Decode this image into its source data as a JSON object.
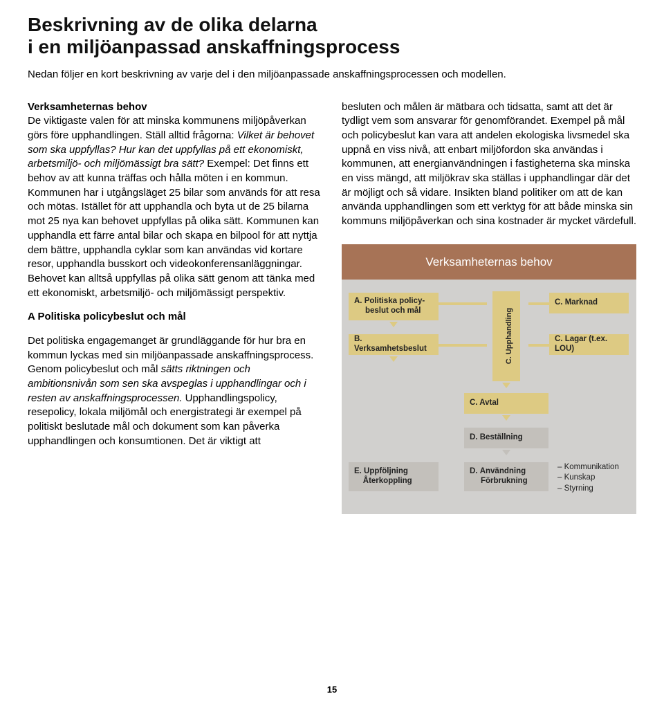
{
  "title_line1": "Beskrivning av de olika delarna",
  "title_line2": "i en miljöanpassad anskaffningsprocess",
  "intro": "Nedan följer en kort beskrivning av varje del i den miljöanpassade anskaffningsprocessen och modellen.",
  "col1_p1_lead": "Verksamheternas behov",
  "col1_p1_body": "De viktigaste valen för att minska kommunens miljöpåverkan görs före upphandlingen. Ställ alltid frågorna: ",
  "col1_p1_ital1": "Vilket är behovet som ska uppfyllas? Hur kan det uppfyllas på ett ekonomiskt, arbetsmiljö- och miljömässigt bra sätt?",
  "col1_p1_after": " Exempel: Det finns ett behov av att kunna träffas och hålla möten i en kommun. Kommunen har i utgångsläget 25 bilar som används för att resa och mötas. Istället för att upphandla och byta ut de 25 bilarna mot 25 nya kan behovet uppfyllas på olika sätt. Kommunen kan upphandla ett färre antal bilar och skapa en bilpool för att nyttja dem bättre, upphandla cyklar som kan användas vid kortare resor, upphandla busskort och videokonferensanläggningar. Behovet kan alltså uppfyllas på olika sätt genom att tänka med ett ekonomiskt, arbetsmiljö- och miljömässigt perspektiv.",
  "col1_h2": "A Politiska policybeslut och mål",
  "col1_p2_start": "Det politiska engagemanget är grundläggande för hur bra en kommun lyckas med sin miljöanpassade anskaffningsprocess. Genom policybeslut och mål ",
  "col1_p2_ital": "sätts riktningen och ambitionsnivån som sen ska avspeglas i upphandlingar och i resten av anskaffningsprocessen.",
  "col1_p2_end": " Upphandlingspolicy, resepolicy, lokala miljömål och energistrategi är exempel på politiskt beslutade mål och dokument som kan påverka upphandlingen och konsumtionen. Det är viktigt att",
  "col2_p1": "besluten och målen är mätbara och tidsatta, samt att det är tydligt vem som ansvarar för genomförandet. Exempel på mål och policybeslut kan vara att andelen ekologiska livsmedel ska uppnå en viss nivå, att enbart miljöfordon ska användas i kommunen, att energianvändningen i fastigheterna ska minska en viss mängd, att miljökrav ska ställas i upphandlingar där det är möjligt och så vidare. Insikten bland politiker om att de kan använda upphandlingen som ett verktyg för att både minska sin kommuns miljöpåverkan och sina kostnader är mycket värdefull.",
  "diagram": {
    "header": "Verksamheternas behov",
    "boxA": "A. Politiska policy-\n     beslut och mål",
    "boxB": "B. Verksamhetsbeslut",
    "vlabel": "C. Upphandling",
    "boxC1": "C. Marknad",
    "boxC2": "C. Lagar (t.ex. LOU)",
    "boxAvtal": "C. Avtal",
    "boxD1": "D. Beställning",
    "boxD2": "D. Användning\n     Förbrukning",
    "boxE": "E. Uppföljning\n    Återkoppling",
    "notes": [
      "– Kommunikation",
      "– Kunskap",
      "– Styrning"
    ],
    "colors": {
      "header_bg": "#a77356",
      "header_text": "#ffffff",
      "box_bg": "#ddca83",
      "grey_bg": "#c3c0bb",
      "canvas_bg": "#d1d0ce"
    }
  },
  "page_number": "15"
}
